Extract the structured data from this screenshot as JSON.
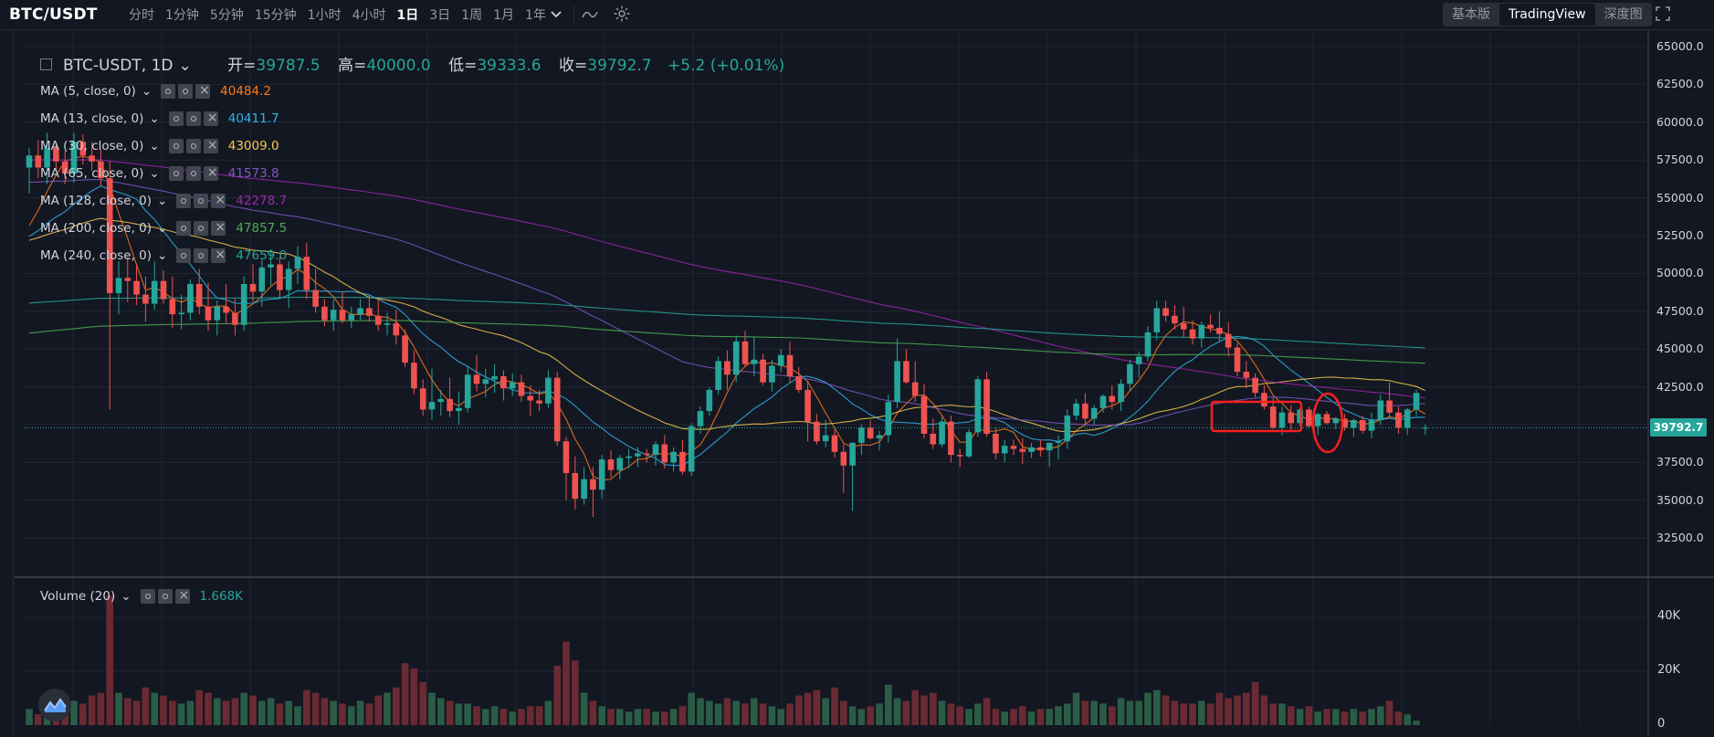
{
  "header": {
    "symbol": "BTC/USDT",
    "intervals": [
      "分时",
      "1分钟",
      "5分钟",
      "15分钟",
      "1小时",
      "4小时",
      "1日",
      "3日",
      "1周",
      "1月",
      "1年"
    ],
    "active_interval": "1日",
    "views": [
      "基本版",
      "TradingView",
      "深度图"
    ],
    "active_view": "TradingView"
  },
  "main_legend": {
    "title": "BTC-USDT, 1D",
    "open_label": "开=",
    "open": "39787.5",
    "high_label": "高=",
    "high": "40000.0",
    "low_label": "低=",
    "low": "39333.6",
    "close_label": "收=",
    "close": "39792.7",
    "change": "+5.2 (+0.01%)"
  },
  "ma_indicators": [
    {
      "label": "MA (5, close, 0)",
      "value": "40484.2",
      "color": "#ff7a1a"
    },
    {
      "label": "MA (13, close, 0)",
      "value": "40411.7",
      "color": "#2cb5e8"
    },
    {
      "label": "MA (30, close, 0)",
      "value": "43009.0",
      "color": "#f2c94c"
    },
    {
      "label": "MA (65, close, 0)",
      "value": "41573.8",
      "color": "#7e57c2"
    },
    {
      "label": "MA (128, close, 0)",
      "value": "42278.7",
      "color": "#9c27b0"
    },
    {
      "label": "MA (200, close, 0)",
      "value": "47857.5",
      "color": "#4caf50"
    },
    {
      "label": "MA (240, close, 0)",
      "value": "47659.0",
      "color": "#26a69a"
    }
  ],
  "volume_legend": {
    "label": "Volume (20)",
    "value": "1.668K",
    "color": "#26a69a"
  },
  "price_axis": [
    "65000.0",
    "62500.0",
    "60000.0",
    "57500.0",
    "55000.0",
    "52500.0",
    "50000.0",
    "47500.0",
    "45000.0",
    "42500.0",
    "40000.0",
    "37500.0",
    "35000.0",
    "32500.0"
  ],
  "volume_axis": [
    "40K",
    "20K",
    "0"
  ],
  "last_price": "39792.7",
  "colors": {
    "up": "#26a69a",
    "down": "#ef5350",
    "background": "#131722",
    "grid": "#2a2e39",
    "annotation": "#ff1e1e"
  },
  "chart_data": {
    "type": "candlestick",
    "timeframe": "1D",
    "y_range": [
      31000,
      65500
    ],
    "candles": [
      [
        57000,
        58300,
        55300,
        57800
      ],
      [
        57800,
        58800,
        56300,
        57000
      ],
      [
        57000,
        59300,
        55900,
        58300
      ],
      [
        58300,
        58600,
        56800,
        57400
      ],
      [
        57400,
        58100,
        55900,
        56600
      ],
      [
        56600,
        59300,
        56000,
        58700
      ],
      [
        58700,
        59200,
        57200,
        57800
      ],
      [
        57800,
        58700,
        56800,
        57400
      ],
      [
        57400,
        58200,
        55800,
        56300
      ],
      [
        56300,
        57400,
        41000,
        48700
      ],
      [
        48700,
        50800,
        47300,
        49700
      ],
      [
        49700,
        51100,
        48100,
        49500
      ],
      [
        49500,
        50600,
        47900,
        48600
      ],
      [
        48600,
        49800,
        46800,
        48000
      ],
      [
        48000,
        50800,
        47600,
        49500
      ],
      [
        49500,
        50200,
        48000,
        48300
      ],
      [
        48300,
        49800,
        46400,
        47300
      ],
      [
        47300,
        48600,
        46300,
        47400
      ],
      [
        47400,
        49600,
        46900,
        49300
      ],
      [
        49300,
        50300,
        47300,
        47800
      ],
      [
        47800,
        49400,
        46200,
        46900
      ],
      [
        46900,
        48200,
        45900,
        47800
      ],
      [
        47800,
        49300,
        46700,
        47400
      ],
      [
        47400,
        48300,
        45900,
        46600
      ],
      [
        46600,
        49800,
        46200,
        49300
      ],
      [
        49300,
        50600,
        48100,
        48800
      ],
      [
        48800,
        50900,
        47800,
        50400
      ],
      [
        50400,
        51600,
        49200,
        50600
      ],
      [
        50600,
        51100,
        48400,
        48900
      ],
      [
        48900,
        50800,
        47700,
        50300
      ],
      [
        50300,
        51800,
        49300,
        51100
      ],
      [
        51100,
        52000,
        48300,
        48900
      ],
      [
        48900,
        50300,
        47400,
        47800
      ],
      [
        47800,
        48300,
        46500,
        46900
      ],
      [
        46900,
        48300,
        46200,
        47600
      ],
      [
        47600,
        48800,
        46700,
        46900
      ],
      [
        46900,
        47800,
        46400,
        47300
      ],
      [
        47300,
        48300,
        46900,
        47700
      ],
      [
        47700,
        48600,
        46800,
        47200
      ],
      [
        47200,
        48300,
        46200,
        46600
      ],
      [
        46600,
        47400,
        45900,
        46700
      ],
      [
        46700,
        47600,
        45300,
        45900
      ],
      [
        45900,
        46300,
        43800,
        44100
      ],
      [
        44100,
        44900,
        42000,
        42400
      ],
      [
        42400,
        43000,
        40600,
        41000
      ],
      [
        41000,
        43700,
        40300,
        41500
      ],
      [
        41500,
        42300,
        40600,
        41700
      ],
      [
        41700,
        43100,
        40500,
        40900
      ],
      [
        40900,
        42200,
        40000,
        41100
      ],
      [
        41100,
        43900,
        40800,
        43300
      ],
      [
        43300,
        44600,
        42200,
        42700
      ],
      [
        42700,
        43700,
        41800,
        43000
      ],
      [
        43000,
        44000,
        42100,
        43200
      ],
      [
        43200,
        43600,
        41600,
        42400
      ],
      [
        42400,
        43400,
        41900,
        42800
      ],
      [
        42800,
        43300,
        41500,
        41900
      ],
      [
        41900,
        42600,
        40600,
        41600
      ],
      [
        41600,
        42300,
        40900,
        41400
      ],
      [
        41400,
        43600,
        41100,
        43100
      ],
      [
        43100,
        43500,
        38600,
        38900
      ],
      [
        38900,
        39200,
        35000,
        36800
      ],
      [
        36800,
        37900,
        34400,
        35100
      ],
      [
        35100,
        37200,
        34700,
        36400
      ],
      [
        36400,
        37200,
        33900,
        35700
      ],
      [
        35700,
        38000,
        35100,
        37700
      ],
      [
        37700,
        38300,
        36500,
        37000
      ],
      [
        37000,
        38000,
        36400,
        37800
      ],
      [
        37800,
        38400,
        37100,
        37900
      ],
      [
        37900,
        38500,
        37200,
        38100
      ],
      [
        38100,
        38400,
        37500,
        38000
      ],
      [
        38000,
        38900,
        37300,
        38700
      ],
      [
        38700,
        39300,
        37100,
        37500
      ],
      [
        37500,
        38500,
        36900,
        38200
      ],
      [
        38200,
        39000,
        36700,
        36900
      ],
      [
        36900,
        40100,
        36600,
        39900
      ],
      [
        39900,
        41200,
        39400,
        40900
      ],
      [
        40900,
        42500,
        40600,
        42300
      ],
      [
        42300,
        44500,
        42000,
        44200
      ],
      [
        44200,
        44900,
        42300,
        43300
      ],
      [
        43300,
        45900,
        42800,
        45500
      ],
      [
        45500,
        46200,
        43800,
        44000
      ],
      [
        44000,
        45800,
        43200,
        44300
      ],
      [
        44300,
        44700,
        42600,
        42800
      ],
      [
        42800,
        44300,
        42200,
        43900
      ],
      [
        43900,
        45000,
        43500,
        44600
      ],
      [
        44600,
        45500,
        42800,
        43200
      ],
      [
        43200,
        43800,
        42100,
        42300
      ],
      [
        42300,
        42900,
        38900,
        40200
      ],
      [
        40200,
        40700,
        38700,
        38900
      ],
      [
        38900,
        40300,
        38500,
        39300
      ],
      [
        39300,
        39700,
        37800,
        38200
      ],
      [
        38200,
        38700,
        35500,
        37300
      ],
      [
        37300,
        38800,
        34300,
        38800
      ],
      [
        38800,
        40000,
        38000,
        39800
      ],
      [
        39800,
        40300,
        39000,
        39100
      ],
      [
        39100,
        39600,
        38300,
        39300
      ],
      [
        39300,
        42000,
        38800,
        41500
      ],
      [
        41500,
        45700,
        41100,
        44200
      ],
      [
        44200,
        45000,
        42700,
        42800
      ],
      [
        42800,
        44200,
        41500,
        41900
      ],
      [
        41900,
        42700,
        39100,
        39400
      ],
      [
        39400,
        40400,
        38400,
        38700
      ],
      [
        38700,
        40500,
        38500,
        40200
      ],
      [
        40200,
        40600,
        37500,
        38000
      ],
      [
        38000,
        38400,
        37200,
        37900
      ],
      [
        37900,
        39700,
        37800,
        39500
      ],
      [
        39500,
        43200,
        39200,
        43000
      ],
      [
        43000,
        43500,
        39200,
        39400
      ],
      [
        39400,
        39800,
        37700,
        38100
      ],
      [
        38100,
        39000,
        37500,
        38600
      ],
      [
        38600,
        39000,
        38000,
        38400
      ],
      [
        38400,
        39100,
        37400,
        38200
      ],
      [
        38200,
        38800,
        37800,
        38500
      ],
      [
        38500,
        39000,
        37900,
        38300
      ],
      [
        38300,
        38600,
        37200,
        38800
      ],
      [
        38800,
        39300,
        37700,
        38900
      ],
      [
        38900,
        41000,
        38400,
        40600
      ],
      [
        40600,
        41700,
        40300,
        41400
      ],
      [
        41400,
        42100,
        39900,
        40400
      ],
      [
        40400,
        41300,
        40000,
        41100
      ],
      [
        41100,
        42000,
        40800,
        41900
      ],
      [
        41900,
        42600,
        41000,
        41500
      ],
      [
        41500,
        43000,
        40900,
        42700
      ],
      [
        42700,
        44300,
        42200,
        44000
      ],
      [
        44000,
        44800,
        43100,
        44500
      ],
      [
        44500,
        46500,
        44200,
        46100
      ],
      [
        46100,
        48200,
        45600,
        47700
      ],
      [
        47700,
        48200,
        46800,
        47200
      ],
      [
        47200,
        47900,
        46300,
        46700
      ],
      [
        46700,
        47800,
        45800,
        46300
      ],
      [
        46300,
        46900,
        45300,
        45700
      ],
      [
        45700,
        46800,
        45100,
        46600
      ],
      [
        46600,
        47300,
        46100,
        46400
      ],
      [
        46400,
        47500,
        45500,
        46000
      ],
      [
        46000,
        46800,
        44500,
        45100
      ],
      [
        45100,
        45400,
        43200,
        43500
      ],
      [
        43500,
        44200,
        42400,
        43100
      ],
      [
        43100,
        43400,
        41800,
        42100
      ],
      [
        42100,
        42600,
        41000,
        41200
      ],
      [
        41200,
        41800,
        39700,
        39800
      ],
      [
        39800,
        41200,
        39300,
        40800
      ],
      [
        40800,
        41300,
        39600,
        40100
      ],
      [
        40100,
        41100,
        39900,
        41000
      ],
      [
        41000,
        41200,
        39800,
        39900
      ],
      [
        39900,
        40800,
        39300,
        40700
      ],
      [
        40700,
        40900,
        40000,
        40100
      ],
      [
        40100,
        40500,
        39700,
        40400
      ],
      [
        40400,
        40700,
        39600,
        39800
      ],
      [
        39800,
        40400,
        39200,
        40300
      ],
      [
        40300,
        40600,
        39400,
        39600
      ],
      [
        39600,
        40800,
        39100,
        40300
      ],
      [
        40300,
        42000,
        40000,
        41600
      ],
      [
        41600,
        42800,
        40400,
        40800
      ],
      [
        40800,
        41200,
        39400,
        39800
      ],
      [
        39800,
        41100,
        39300,
        41000
      ],
      [
        41000,
        42300,
        40600,
        42100
      ],
      [
        39787.5,
        40000.0,
        39333.6,
        39792.7
      ]
    ],
    "volumes_k": [
      6,
      4,
      5,
      8,
      10,
      9,
      8,
      11,
      12,
      48,
      12,
      10,
      9,
      14,
      12,
      11,
      9,
      8,
      9,
      13,
      12,
      10,
      9,
      10,
      12,
      11,
      9,
      10,
      8,
      9,
      7,
      13,
      12,
      10,
      9,
      8,
      7,
      9,
      8,
      11,
      12,
      14,
      23,
      21,
      16,
      12,
      10,
      9,
      8,
      8,
      7,
      6,
      7,
      6,
      5,
      6,
      7,
      7,
      9,
      22,
      31,
      24,
      12,
      9,
      7,
      6,
      6,
      5,
      6,
      6,
      5,
      5,
      6,
      7,
      12,
      10,
      9,
      8,
      10,
      9,
      8,
      10,
      8,
      7,
      6,
      8,
      11,
      12,
      13,
      10,
      14,
      9,
      7,
      6,
      7,
      8,
      15,
      10,
      9,
      13,
      11,
      12,
      9,
      8,
      7,
      6,
      8,
      10,
      6,
      5,
      6,
      7,
      5,
      6,
      6,
      7,
      8,
      12,
      9,
      9,
      8,
      7,
      10,
      9,
      9,
      12,
      13,
      11,
      9,
      8,
      8,
      9,
      8,
      12,
      10,
      11,
      12,
      16,
      11,
      8,
      8,
      7,
      6,
      7,
      5,
      6,
      6,
      5,
      6,
      5,
      6,
      7,
      9,
      5,
      4,
      1.668
    ]
  }
}
